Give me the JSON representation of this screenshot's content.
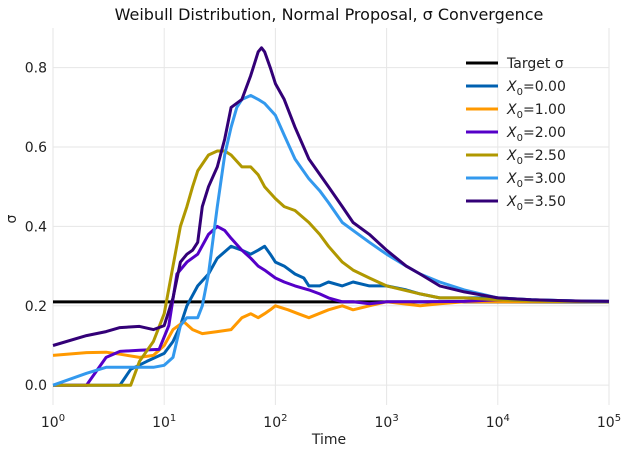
{
  "chart_data": {
    "type": "line",
    "title": "Weibull Distribution, Normal Proposal, σ Convergence",
    "xlabel": "Time",
    "ylabel": "σ",
    "xscale": "log",
    "xlim": [
      1,
      100000
    ],
    "ylim": [
      -0.05,
      0.9
    ],
    "grid": true,
    "legend_position": "upper-right",
    "x_ticks": [
      {
        "value": 1,
        "base": "10",
        "exp": "0"
      },
      {
        "value": 10,
        "base": "10",
        "exp": "1"
      },
      {
        "value": 100,
        "base": "10",
        "exp": "2"
      },
      {
        "value": 1000,
        "base": "10",
        "exp": "3"
      },
      {
        "value": 10000,
        "base": "10",
        "exp": "4"
      },
      {
        "value": 100000,
        "base": "10",
        "exp": "5"
      }
    ],
    "y_ticks": [
      {
        "value": 0.0,
        "label": "0.0"
      },
      {
        "value": 0.2,
        "label": "0.2"
      },
      {
        "value": 0.4,
        "label": "0.4"
      },
      {
        "value": 0.6,
        "label": "0.6"
      },
      {
        "value": 0.8,
        "label": "0.8"
      }
    ],
    "target": {
      "name": "Target σ",
      "value": 0.21,
      "color": "#000000"
    },
    "series": [
      {
        "prefix": "X",
        "sub": "0",
        "suffix": "=0.00",
        "color": "#0060b0",
        "points": [
          [
            1,
            0
          ],
          [
            4,
            0
          ],
          [
            5,
            0.04
          ],
          [
            7,
            0.06
          ],
          [
            10,
            0.08
          ],
          [
            12,
            0.11
          ],
          [
            14,
            0.15
          ],
          [
            16,
            0.2
          ],
          [
            20,
            0.25
          ],
          [
            25,
            0.28
          ],
          [
            30,
            0.32
          ],
          [
            40,
            0.35
          ],
          [
            50,
            0.34
          ],
          [
            60,
            0.33
          ],
          [
            70,
            0.34
          ],
          [
            80,
            0.35
          ],
          [
            90,
            0.33
          ],
          [
            100,
            0.31
          ],
          [
            120,
            0.3
          ],
          [
            150,
            0.28
          ],
          [
            180,
            0.27
          ],
          [
            200,
            0.25
          ],
          [
            250,
            0.25
          ],
          [
            300,
            0.26
          ],
          [
            400,
            0.25
          ],
          [
            500,
            0.26
          ],
          [
            700,
            0.25
          ],
          [
            1000,
            0.25
          ],
          [
            1500,
            0.24
          ],
          [
            2000,
            0.23
          ],
          [
            3000,
            0.22
          ],
          [
            5000,
            0.22
          ],
          [
            10000,
            0.22
          ],
          [
            20000,
            0.215
          ],
          [
            50000,
            0.212
          ],
          [
            100000,
            0.211
          ]
        ]
      },
      {
        "prefix": "X",
        "sub": "0",
        "suffix": "=1.00",
        "color": "#ff9900",
        "points": [
          [
            1,
            0.075
          ],
          [
            2,
            0.082
          ],
          [
            3,
            0.083
          ],
          [
            4,
            0.078
          ],
          [
            6,
            0.07
          ],
          [
            8,
            0.075
          ],
          [
            10,
            0.1
          ],
          [
            12,
            0.14
          ],
          [
            15,
            0.16
          ],
          [
            18,
            0.14
          ],
          [
            22,
            0.13
          ],
          [
            30,
            0.135
          ],
          [
            40,
            0.14
          ],
          [
            50,
            0.17
          ],
          [
            60,
            0.18
          ],
          [
            70,
            0.17
          ],
          [
            80,
            0.18
          ],
          [
            90,
            0.19
          ],
          [
            100,
            0.2
          ],
          [
            130,
            0.19
          ],
          [
            160,
            0.18
          ],
          [
            200,
            0.17
          ],
          [
            300,
            0.19
          ],
          [
            400,
            0.2
          ],
          [
            500,
            0.19
          ],
          [
            700,
            0.2
          ],
          [
            1000,
            0.21
          ],
          [
            2000,
            0.2
          ],
          [
            3000,
            0.205
          ],
          [
            5000,
            0.21
          ],
          [
            10000,
            0.21
          ],
          [
            100000,
            0.211
          ]
        ]
      },
      {
        "prefix": "X",
        "sub": "0",
        "suffix": "=2.00",
        "color": "#5500c8",
        "points": [
          [
            1,
            0
          ],
          [
            2,
            0
          ],
          [
            3,
            0.07
          ],
          [
            4,
            0.085
          ],
          [
            6,
            0.088
          ],
          [
            9,
            0.09
          ],
          [
            11,
            0.15
          ],
          [
            13,
            0.28
          ],
          [
            16,
            0.31
          ],
          [
            20,
            0.33
          ],
          [
            25,
            0.38
          ],
          [
            30,
            0.4
          ],
          [
            35,
            0.39
          ],
          [
            40,
            0.37
          ],
          [
            50,
            0.34
          ],
          [
            60,
            0.32
          ],
          [
            70,
            0.3
          ],
          [
            80,
            0.29
          ],
          [
            100,
            0.27
          ],
          [
            120,
            0.26
          ],
          [
            150,
            0.25
          ],
          [
            200,
            0.24
          ],
          [
            250,
            0.23
          ],
          [
            300,
            0.22
          ],
          [
            400,
            0.21
          ],
          [
            500,
            0.21
          ],
          [
            700,
            0.205
          ],
          [
            1000,
            0.21
          ],
          [
            2000,
            0.21
          ],
          [
            5000,
            0.211
          ],
          [
            10000,
            0.215
          ],
          [
            100000,
            0.211
          ]
        ]
      },
      {
        "prefix": "X",
        "sub": "0",
        "suffix": "=2.50",
        "color": "#b09800",
        "points": [
          [
            1,
            0
          ],
          [
            5,
            0
          ],
          [
            6,
            0.06
          ],
          [
            8,
            0.11
          ],
          [
            10,
            0.18
          ],
          [
            12,
            0.3
          ],
          [
            14,
            0.4
          ],
          [
            16,
            0.45
          ],
          [
            18,
            0.5
          ],
          [
            20,
            0.54
          ],
          [
            25,
            0.58
          ],
          [
            30,
            0.59
          ],
          [
            35,
            0.59
          ],
          [
            40,
            0.58
          ],
          [
            50,
            0.55
          ],
          [
            60,
            0.55
          ],
          [
            70,
            0.53
          ],
          [
            80,
            0.5
          ],
          [
            100,
            0.47
          ],
          [
            120,
            0.45
          ],
          [
            150,
            0.44
          ],
          [
            200,
            0.41
          ],
          [
            250,
            0.38
          ],
          [
            300,
            0.35
          ],
          [
            400,
            0.31
          ],
          [
            500,
            0.29
          ],
          [
            700,
            0.27
          ],
          [
            1000,
            0.25
          ],
          [
            2000,
            0.23
          ],
          [
            3000,
            0.22
          ],
          [
            5000,
            0.22
          ],
          [
            10000,
            0.215
          ],
          [
            20000,
            0.212
          ],
          [
            100000,
            0.21
          ]
        ]
      },
      {
        "prefix": "X",
        "sub": "0",
        "suffix": "=3.00",
        "color": "#3399ee",
        "points": [
          [
            1,
            0
          ],
          [
            2,
            0.03
          ],
          [
            3,
            0.045
          ],
          [
            8,
            0.045
          ],
          [
            10,
            0.05
          ],
          [
            12,
            0.07
          ],
          [
            14,
            0.15
          ],
          [
            16,
            0.17
          ],
          [
            20,
            0.17
          ],
          [
            22,
            0.2
          ],
          [
            25,
            0.28
          ],
          [
            30,
            0.45
          ],
          [
            35,
            0.58
          ],
          [
            40,
            0.65
          ],
          [
            45,
            0.7
          ],
          [
            50,
            0.72
          ],
          [
            60,
            0.73
          ],
          [
            70,
            0.72
          ],
          [
            80,
            0.71
          ],
          [
            100,
            0.68
          ],
          [
            120,
            0.63
          ],
          [
            150,
            0.57
          ],
          [
            200,
            0.52
          ],
          [
            250,
            0.49
          ],
          [
            300,
            0.46
          ],
          [
            400,
            0.41
          ],
          [
            500,
            0.39
          ],
          [
            700,
            0.36
          ],
          [
            1000,
            0.33
          ],
          [
            1500,
            0.3
          ],
          [
            2000,
            0.28
          ],
          [
            3000,
            0.26
          ],
          [
            5000,
            0.24
          ],
          [
            10000,
            0.22
          ],
          [
            20000,
            0.215
          ],
          [
            50000,
            0.212
          ],
          [
            100000,
            0.211
          ]
        ]
      },
      {
        "prefix": "X",
        "sub": "0",
        "suffix": "=3.50",
        "color": "#330077",
        "points": [
          [
            1,
            0.1
          ],
          [
            2,
            0.125
          ],
          [
            3,
            0.135
          ],
          [
            4,
            0.145
          ],
          [
            6,
            0.148
          ],
          [
            8,
            0.14
          ],
          [
            10,
            0.15
          ],
          [
            12,
            0.22
          ],
          [
            14,
            0.31
          ],
          [
            16,
            0.33
          ],
          [
            18,
            0.34
          ],
          [
            20,
            0.36
          ],
          [
            22,
            0.45
          ],
          [
            25,
            0.5
          ],
          [
            30,
            0.55
          ],
          [
            35,
            0.62
          ],
          [
            40,
            0.7
          ],
          [
            50,
            0.72
          ],
          [
            60,
            0.78
          ],
          [
            70,
            0.84
          ],
          [
            75,
            0.85
          ],
          [
            80,
            0.84
          ],
          [
            90,
            0.8
          ],
          [
            100,
            0.76
          ],
          [
            120,
            0.72
          ],
          [
            150,
            0.65
          ],
          [
            200,
            0.57
          ],
          [
            300,
            0.5
          ],
          [
            400,
            0.45
          ],
          [
            500,
            0.41
          ],
          [
            700,
            0.38
          ],
          [
            1000,
            0.34
          ],
          [
            1500,
            0.3
          ],
          [
            2000,
            0.28
          ],
          [
            3000,
            0.25
          ],
          [
            5000,
            0.235
          ],
          [
            10000,
            0.22
          ],
          [
            20000,
            0.215
          ],
          [
            50000,
            0.212
          ],
          [
            100000,
            0.211
          ]
        ]
      }
    ]
  }
}
